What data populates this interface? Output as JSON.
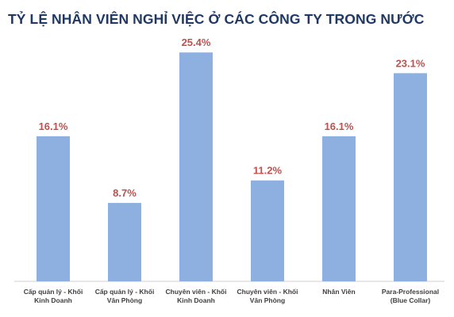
{
  "title": "TỶ LỆ NHÂN VIÊN NGHỈ VIỆC Ở CÁC CÔNG TY TRONG NƯỚC",
  "colors": {
    "bar": "#8db0e0",
    "value_label": "#c0504d",
    "axis": "#d0d0d0",
    "title": "#1f3864"
  },
  "chart_data": {
    "type": "bar",
    "title": "TỶ LỆ NHÂN VIÊN NGHỈ VIỆC Ở CÁC CÔNG TY TRONG NƯỚC",
    "categories": [
      [
        "Cấp quản lý - Khối",
        "Kinh Doanh"
      ],
      [
        "Cấp quản lý - Khối",
        "Văn Phòng"
      ],
      [
        "Chuyên viên - Khối",
        "Kinh Doanh"
      ],
      [
        "Chuyên viên - Khối",
        "Văn Phòng"
      ],
      [
        "Nhân Viên"
      ],
      [
        "Para-Professional",
        "(Blue Collar)"
      ]
    ],
    "values": [
      16.1,
      8.7,
      25.4,
      11.2,
      16.1,
      23.1
    ],
    "value_labels": [
      "16.1%",
      "8.7%",
      "25.4%",
      "11.2%",
      "16.1%",
      "23.1%"
    ],
    "unit": "%",
    "ylim": [
      0,
      27
    ],
    "grid": false,
    "legend": "none"
  }
}
